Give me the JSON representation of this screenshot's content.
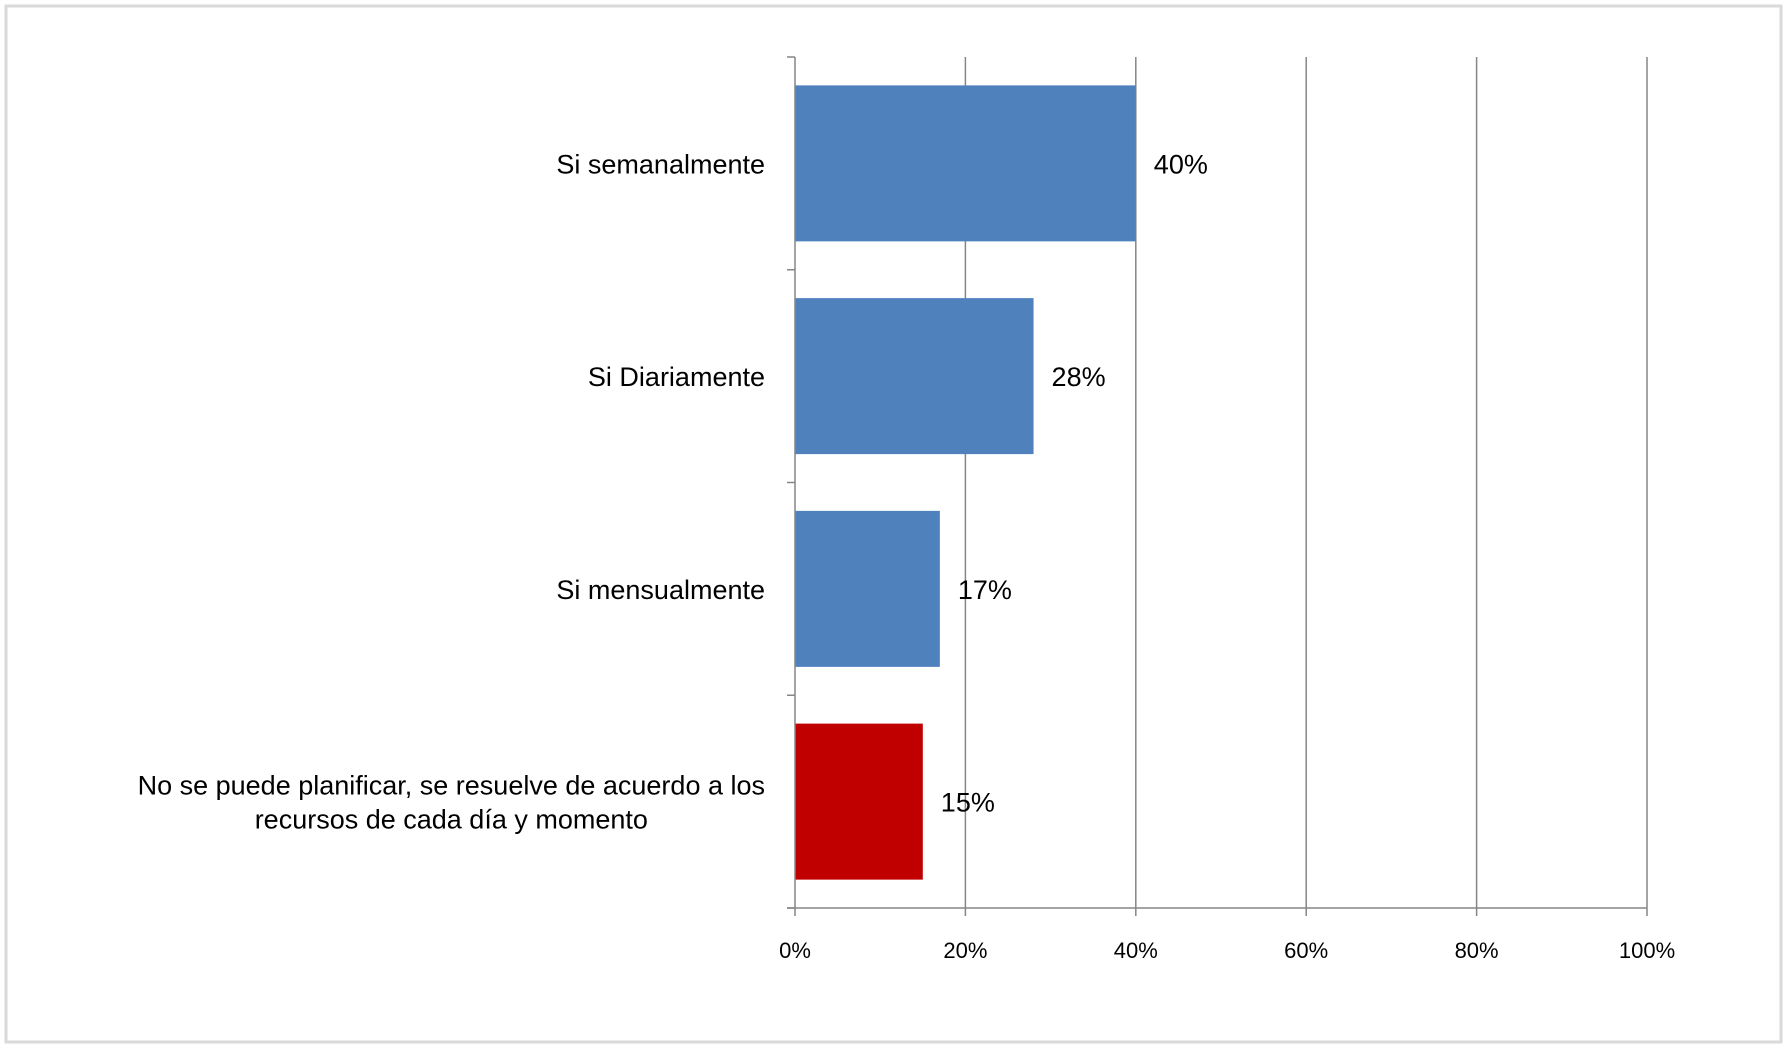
{
  "chart_data": {
    "type": "bar",
    "orientation": "horizontal",
    "categories": [
      "Si semanalmente",
      "Si Diariamente",
      "Si mensualmente",
      "No se puede planificar, se resuelve de acuerdo a los recursos de cada día y momento"
    ],
    "category_label_lines": [
      [
        "Si semanalmente"
      ],
      [
        "Si Diariamente"
      ],
      [
        "Si mensualmente"
      ],
      [
        "No se puede planificar, se resuelve de acuerdo a los",
        "recursos de cada día y momento"
      ]
    ],
    "values": [
      40,
      28,
      17,
      15
    ],
    "data_labels": [
      "40%",
      "28%",
      "17%",
      "15%"
    ],
    "bar_colors": [
      "#4f81bd",
      "#4f81bd",
      "#4f81bd",
      "#c00000"
    ],
    "xlim": [
      0,
      100
    ],
    "x_ticks": [
      0,
      20,
      40,
      60,
      80,
      100
    ],
    "x_tick_labels": [
      "0%",
      "20%",
      "40%",
      "60%",
      "80%",
      "100%"
    ],
    "grid": "vertical",
    "gridline_color": "#868686",
    "frame_color": "#d9d9d9",
    "title": "",
    "xlabel": "",
    "ylabel": ""
  }
}
